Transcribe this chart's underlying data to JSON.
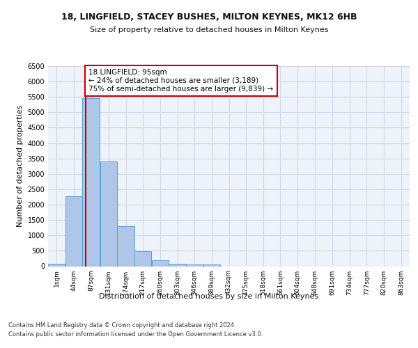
{
  "title": "18, LINGFIELD, STACEY BUSHES, MILTON KEYNES, MK12 6HB",
  "subtitle": "Size of property relative to detached houses in Milton Keynes",
  "xlabel": "Distribution of detached houses by size in Milton Keynes",
  "ylabel": "Number of detached properties",
  "bar_values": [
    70,
    2280,
    5450,
    3400,
    1310,
    490,
    200,
    90,
    50,
    50,
    0,
    0,
    0,
    0,
    0,
    0,
    0,
    0,
    0,
    0,
    0
  ],
  "bar_edges": [
    1,
    44,
    87,
    131,
    174,
    217,
    260,
    303,
    346,
    389,
    432,
    475,
    518,
    561,
    604,
    648,
    691,
    734,
    777,
    820,
    863
  ],
  "bar_color": "#aec6e8",
  "bar_edgecolor": "#5a9fd4",
  "grid_color": "#d0d8e8",
  "bg_color": "#eef2f9",
  "vline_x": 95,
  "vline_color": "#cc0000",
  "annotation_text": "18 LINGFIELD: 95sqm\n← 24% of detached houses are smaller (3,189)\n75% of semi-detached houses are larger (9,839) →",
  "annotation_box_color": "#ffffff",
  "annotation_box_edgecolor": "#cc0000",
  "ylim": [
    0,
    6500
  ],
  "yticks": [
    0,
    500,
    1000,
    1500,
    2000,
    2500,
    3000,
    3500,
    4000,
    4500,
    5000,
    5500,
    6000,
    6500
  ],
  "footer_line1": "Contains HM Land Registry data © Crown copyright and database right 2024.",
  "footer_line2": "Contains public sector information licensed under the Open Government Licence v3.0."
}
